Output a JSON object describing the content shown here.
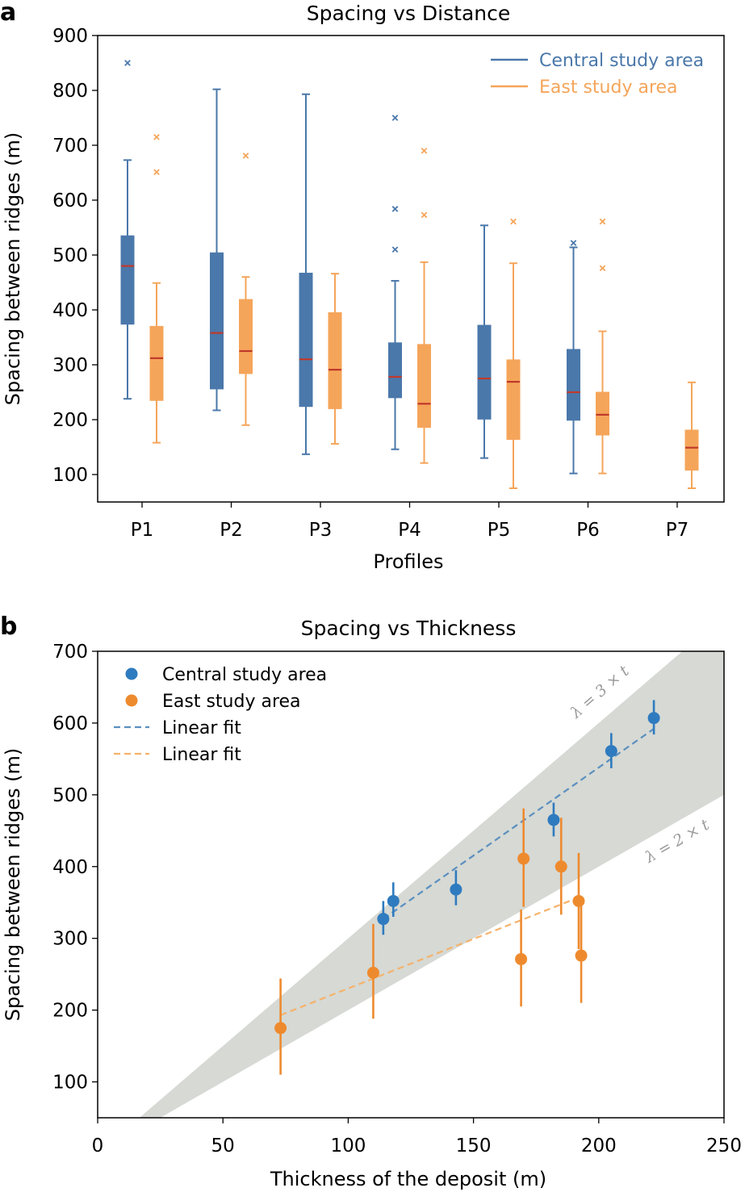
{
  "chart_data": [
    {
      "panel": "a",
      "type": "box",
      "title": "Spacing vs Distance",
      "xlabel": "Profiles",
      "ylabel": "Spacing between ridges (m)",
      "ylim": [
        50,
        900
      ],
      "yticks": [
        "100",
        "200",
        "300",
        "400",
        "500",
        "600",
        "700",
        "800",
        "900"
      ],
      "categories": [
        "P1",
        "P2",
        "P3",
        "P4",
        "P5",
        "P6",
        "P7"
      ],
      "legend_position": "top-right",
      "series": [
        {
          "name": "Central study area",
          "color": "#4a78aa",
          "median_color": "#c0392b",
          "boxes": [
            {
              "category": "P1",
              "whisker_low": 238,
              "q1": 374,
              "median": 480,
              "q3": 535,
              "whisker_high": 673,
              "outliers": [
                850
              ]
            },
            {
              "category": "P2",
              "whisker_low": 217,
              "q1": 256,
              "median": 358,
              "q3": 504,
              "whisker_high": 802,
              "outliers": []
            },
            {
              "category": "P3",
              "whisker_low": 137,
              "q1": 224,
              "median": 310,
              "q3": 467,
              "whisker_high": 793,
              "outliers": []
            },
            {
              "category": "P4",
              "whisker_low": 146,
              "q1": 240,
              "median": 278,
              "q3": 340,
              "whisker_high": 453,
              "outliers": [
                750,
                584,
                510
              ]
            },
            {
              "category": "P5",
              "whisker_low": 130,
              "q1": 201,
              "median": 275,
              "q3": 372,
              "whisker_high": 554,
              "outliers": []
            },
            {
              "category": "P6",
              "whisker_low": 102,
              "q1": 199,
              "median": 250,
              "q3": 328,
              "whisker_high": 514,
              "outliers": [
                522
              ]
            }
          ]
        },
        {
          "name": "East study area",
          "color": "#f5a55a",
          "median_color": "#c0392b",
          "boxes": [
            {
              "category": "P1",
              "whisker_low": 158,
              "q1": 235,
              "median": 312,
              "q3": 370,
              "whisker_high": 449,
              "outliers": [
                715,
                651
              ]
            },
            {
              "category": "P2",
              "whisker_low": 190,
              "q1": 284,
              "median": 325,
              "q3": 419,
              "whisker_high": 460,
              "outliers": [
                681
              ]
            },
            {
              "category": "P3",
              "whisker_low": 156,
              "q1": 220,
              "median": 291,
              "q3": 395,
              "whisker_high": 466,
              "outliers": []
            },
            {
              "category": "P4",
              "whisker_low": 121,
              "q1": 186,
              "median": 229,
              "q3": 337,
              "whisker_high": 487,
              "outliers": [
                690,
                573
              ]
            },
            {
              "category": "P5",
              "whisker_low": 75,
              "q1": 164,
              "median": 269,
              "q3": 309,
              "whisker_high": 485,
              "outliers": [
                561
              ]
            },
            {
              "category": "P6",
              "whisker_low": 102,
              "q1": 172,
              "median": 209,
              "q3": 250,
              "whisker_high": 361,
              "outliers": [
                561,
                476
              ]
            },
            {
              "category": "P7",
              "whisker_low": 75,
              "q1": 108,
              "median": 149,
              "q3": 181,
              "whisker_high": 268,
              "outliers": []
            }
          ]
        }
      ]
    },
    {
      "panel": "b",
      "type": "scatter",
      "title": "Spacing vs Thickness",
      "xlabel": "Thickness of the deposit (m)",
      "ylabel": "Spacing between ridges (m)",
      "xlim": [
        0,
        250
      ],
      "ylim": [
        50,
        700
      ],
      "xticks": [
        "0",
        "50",
        "100",
        "150",
        "200",
        "250"
      ],
      "yticks": [
        "100",
        "200",
        "300",
        "400",
        "500",
        "600",
        "700"
      ],
      "legend_position": "top-left",
      "band": {
        "lower_label": "λ = 2 × t",
        "upper_label": "λ = 3 × t",
        "lower_factor": 2,
        "upper_factor": 3,
        "color": "#d6d9d4"
      },
      "series": [
        {
          "name": "Central study area",
          "color": "#2f7bbf",
          "points": [
            {
              "x": 114,
              "y": 327,
              "err_low": 305,
              "err_high": 352
            },
            {
              "x": 118,
              "y": 352,
              "err_low": 330,
              "err_high": 378
            },
            {
              "x": 143,
              "y": 368,
              "err_low": 346,
              "err_high": 395
            },
            {
              "x": 182,
              "y": 465,
              "err_low": 442,
              "err_high": 489
            },
            {
              "x": 205,
              "y": 561,
              "err_low": 537,
              "err_high": 586
            },
            {
              "x": 222,
              "y": 607,
              "err_low": 584,
              "err_high": 632
            }
          ]
        },
        {
          "name": "East study area",
          "color": "#ee8a2e",
          "points": [
            {
              "x": 73,
              "y": 175,
              "err_low": 110,
              "err_high": 244
            },
            {
              "x": 110,
              "y": 252,
              "err_low": 188,
              "err_high": 320
            },
            {
              "x": 169,
              "y": 271,
              "err_low": 205,
              "err_high": 340
            },
            {
              "x": 170,
              "y": 411,
              "err_low": 344,
              "err_high": 481
            },
            {
              "x": 185,
              "y": 400,
              "err_low": 333,
              "err_high": 468
            },
            {
              "x": 192,
              "y": 352,
              "err_low": 285,
              "err_high": 419
            },
            {
              "x": 193,
              "y": 276,
              "err_low": 210,
              "err_high": 345
            }
          ]
        },
        {
          "name": "Linear fit",
          "color": "#5b8fbf",
          "style": "dashed",
          "x": [
            114,
            222
          ],
          "y": [
            327,
            592
          ]
        },
        {
          "name": "Linear fit",
          "color": "#f5b26b",
          "style": "dashed",
          "x": [
            73,
            192
          ],
          "y": [
            193,
            357
          ]
        }
      ]
    }
  ]
}
